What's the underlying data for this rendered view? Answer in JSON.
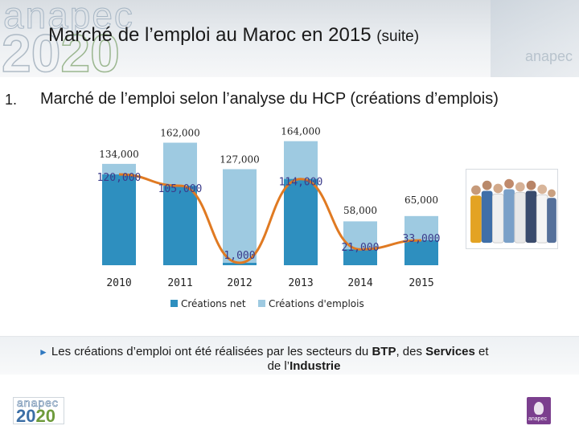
{
  "header": {
    "title": "Marché de l’emploi au Maroc en 2015",
    "title_suffix": "(suite)",
    "watermark_brand": "anapec",
    "watermark_year_a": "20",
    "watermark_year_b": "20",
    "watermark_right": "anapec"
  },
  "section": {
    "number": "1.",
    "heading": "Marché de l’emploi selon l’analyse du HCP (créations d’emplois)"
  },
  "chart_data": {
    "type": "bar",
    "categories": [
      "2010",
      "2011",
      "2012",
      "2013",
      "2014",
      "2015"
    ],
    "series": [
      {
        "name": "Créations d'emplois",
        "values": [
          134000,
          162000,
          127000,
          164000,
          58000,
          65000
        ],
        "color": "#9ecae1"
      },
      {
        "name": "Créations net",
        "values": [
          120000,
          105000,
          1000,
          114000,
          21000,
          33000
        ],
        "color": "#2e8fbf",
        "labels": [
          "120,000",
          "105,000",
          "1,000",
          "114,000",
          "21,000",
          "33,000"
        ]
      }
    ],
    "gross_labels": [
      "134,000",
      "162,000",
      "127,000",
      "164,000",
      "58,000",
      "65,000"
    ],
    "overlay_line": {
      "series": "Créations net",
      "color": "#e07a22"
    },
    "legend_position": "bottom",
    "grid": false
  },
  "note": {
    "text_a": "Les créations d’emploi ont été réalisées par les secteurs du ",
    "btp": "BTP",
    "text_b": ", des ",
    "services": "Services",
    "text_c": " et",
    "text_d": "de l’",
    "industrie": "Industrie"
  },
  "footer": {
    "logo_brand": "anapec",
    "logo_year_a": "20",
    "logo_year_b": "20",
    "right_logo_text": "anapec"
  },
  "colors": {
    "gross": "#9ecae1",
    "net": "#2e8fbf",
    "line": "#e07a22",
    "accent_arrow": "#2f78c0"
  }
}
